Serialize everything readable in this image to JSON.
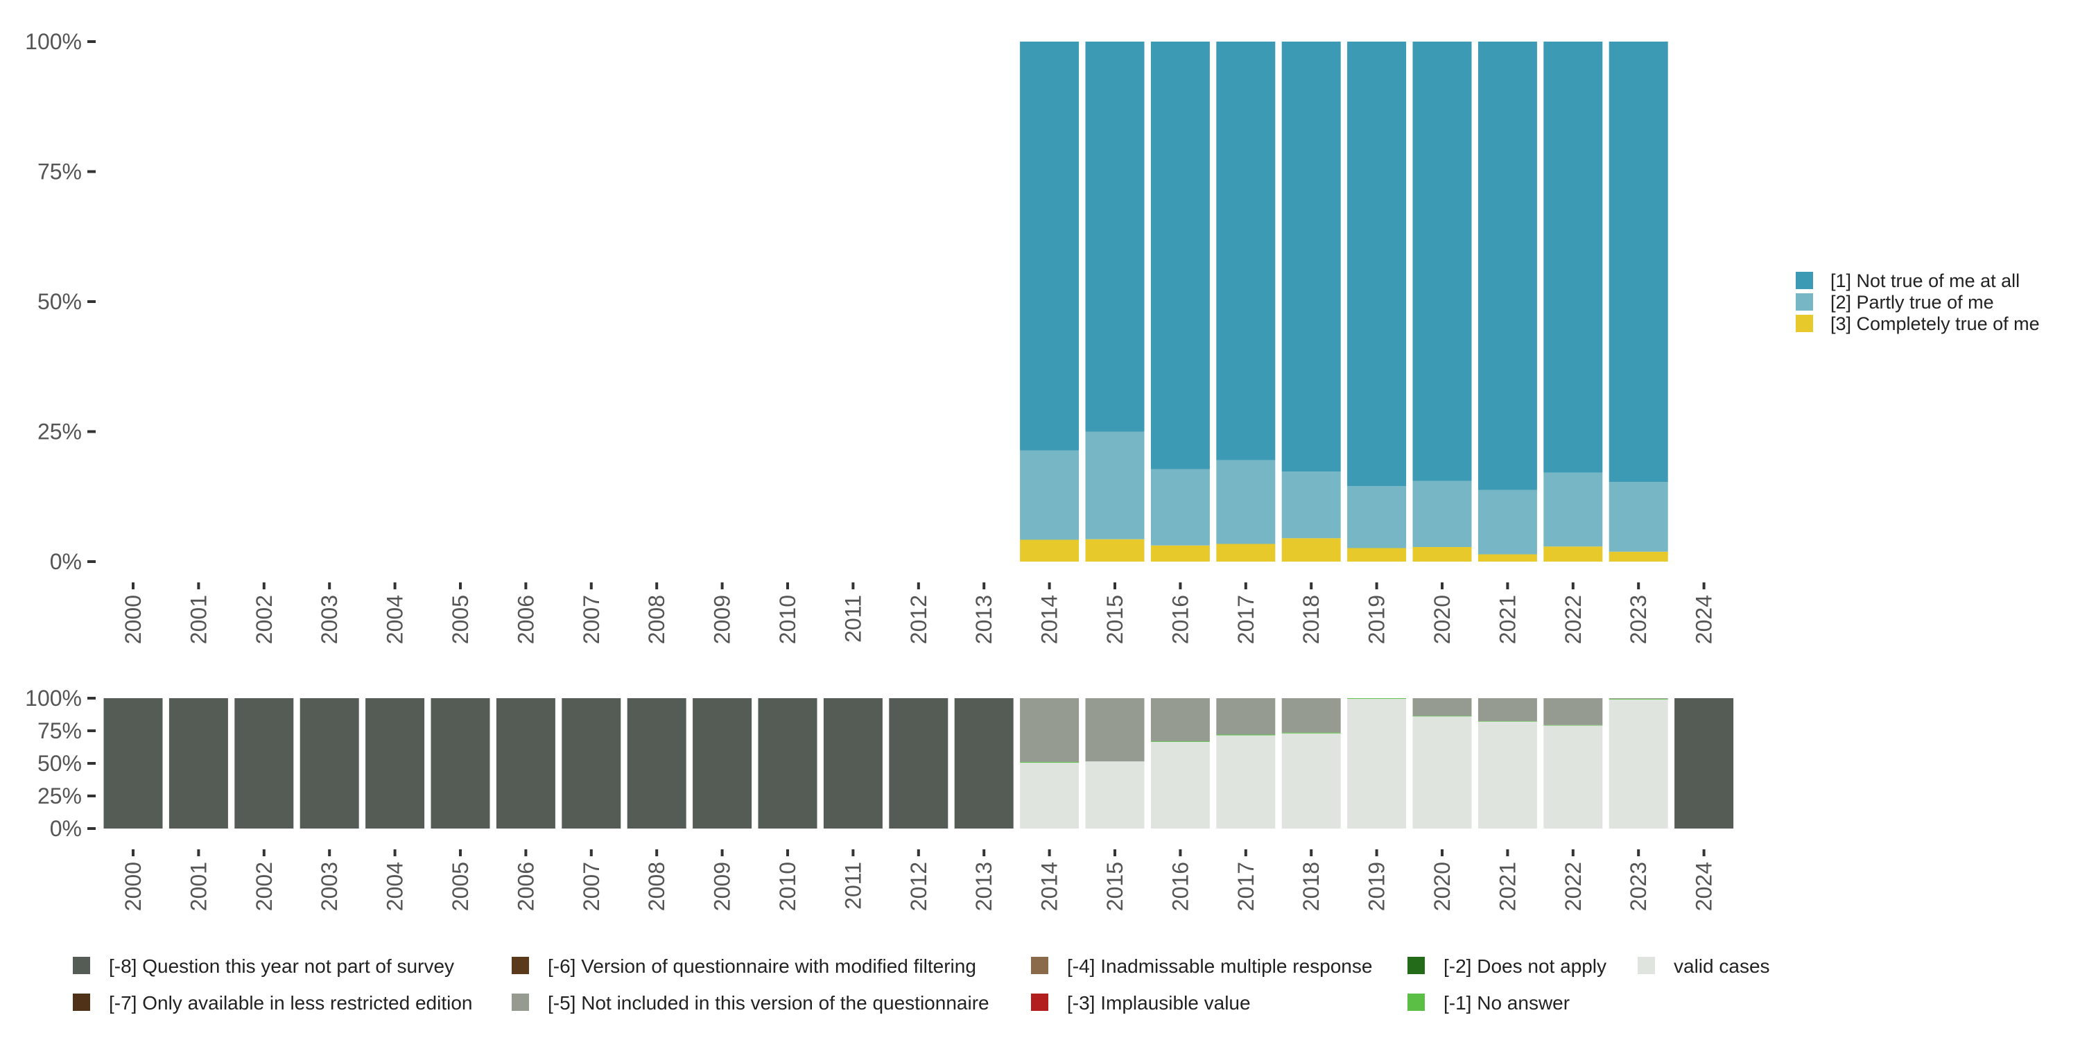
{
  "chart_data": [
    {
      "type": "bar",
      "stacked": true,
      "title": "",
      "xlabel": "",
      "ylabel": "",
      "ylim": [
        0,
        100
      ],
      "ytick_labels": [
        "0%",
        "25%",
        "50%",
        "75%",
        "100%"
      ],
      "categories": [
        "2000",
        "2001",
        "2002",
        "2003",
        "2004",
        "2005",
        "2006",
        "2007",
        "2008",
        "2009",
        "2010",
        "2011",
        "2012",
        "2013",
        "2014",
        "2015",
        "2016",
        "2017",
        "2018",
        "2019",
        "2020",
        "2021",
        "2022",
        "2023",
        "2024"
      ],
      "series": [
        {
          "name": "[3] Completely true of me",
          "color": "#e8c92c",
          "values": [
            null,
            null,
            null,
            null,
            null,
            null,
            null,
            null,
            null,
            null,
            null,
            null,
            null,
            null,
            4.2,
            4.3,
            3.1,
            3.4,
            4.5,
            2.6,
            2.8,
            1.4,
            2.9,
            1.9,
            null
          ]
        },
        {
          "name": "[2] Partly true of me",
          "color": "#77b6c4",
          "values": [
            null,
            null,
            null,
            null,
            null,
            null,
            null,
            null,
            null,
            null,
            null,
            null,
            null,
            null,
            17.2,
            20.7,
            14.7,
            16.1,
            12.8,
            11.9,
            12.7,
            12.4,
            14.2,
            13.4,
            null
          ]
        },
        {
          "name": "[1] Not true of me at all",
          "color": "#3c9ab4",
          "values": [
            null,
            null,
            null,
            null,
            null,
            null,
            null,
            null,
            null,
            null,
            null,
            null,
            null,
            null,
            78.6,
            75.0,
            82.2,
            80.5,
            82.7,
            85.5,
            84.5,
            86.2,
            82.9,
            84.7,
            null
          ]
        }
      ],
      "legend_position": "right"
    },
    {
      "type": "bar",
      "stacked": true,
      "title": "",
      "xlabel": "",
      "ylabel": "",
      "ylim": [
        0,
        100
      ],
      "ytick_labels": [
        "0%",
        "25%",
        "50%",
        "75%",
        "100%"
      ],
      "categories": [
        "2000",
        "2001",
        "2002",
        "2003",
        "2004",
        "2005",
        "2006",
        "2007",
        "2008",
        "2009",
        "2010",
        "2011",
        "2012",
        "2013",
        "2014",
        "2015",
        "2016",
        "2017",
        "2018",
        "2019",
        "2020",
        "2021",
        "2022",
        "2023",
        "2024"
      ],
      "series": [
        {
          "name": "valid cases",
          "color": "#e0e4df",
          "values": [
            0,
            0,
            0,
            0,
            0,
            0,
            0,
            0,
            0,
            0,
            0,
            0,
            0,
            0,
            50.5,
            51.5,
            66.5,
            71.5,
            73.0,
            99.5,
            86.0,
            82.0,
            79.0,
            99.0,
            0
          ]
        },
        {
          "name": "[-1] No answer",
          "color": "#5bbf45",
          "values": [
            0,
            0,
            0,
            0,
            0,
            0,
            0,
            0,
            0,
            0,
            0,
            0,
            0,
            0,
            0.6,
            0,
            0.5,
            0.6,
            0.6,
            0.5,
            0.4,
            0.4,
            0.4,
            0.5,
            0
          ]
        },
        {
          "name": "[-5] Not included in this version of the questionnaire",
          "color": "#969b91",
          "values": [
            0,
            0,
            0,
            0,
            0,
            0,
            0,
            0,
            0,
            0,
            0,
            0,
            0,
            0,
            48.9,
            48.5,
            33.0,
            27.9,
            26.4,
            0,
            13.6,
            17.6,
            20.6,
            0.5,
            0
          ]
        },
        {
          "name": "[-8] Question this year not part of survey",
          "color": "#555c55",
          "values": [
            100,
            100,
            100,
            100,
            100,
            100,
            100,
            100,
            100,
            100,
            100,
            100,
            100,
            100,
            0,
            0,
            0,
            0,
            0,
            0,
            0,
            0,
            0,
            0,
            100
          ]
        }
      ],
      "legend_position": "bottom"
    }
  ],
  "legend_top": [
    {
      "label": "[1] Not true of me at all",
      "color": "#3c9ab4"
    },
    {
      "label": "[2] Partly true of me",
      "color": "#77b6c4"
    },
    {
      "label": "[3] Completely true of me",
      "color": "#e8c92c"
    }
  ],
  "legend_bottom": [
    {
      "label": "[-8] Question this year not part of survey",
      "color": "#555c55"
    },
    {
      "label": "[-7] Only available in less restricted edition",
      "color": "#4f3218"
    },
    {
      "label": "[-6] Version of questionnaire with modified filtering",
      "color": "#5a3a1a"
    },
    {
      "label": "[-5] Not included in this version of the questionnaire",
      "color": "#969b91"
    },
    {
      "label": "[-4] Inadmissable multiple response",
      "color": "#8a6a4a"
    },
    {
      "label": "[-3] Implausible value",
      "color": "#b21e1e"
    },
    {
      "label": "[-2] Does not apply",
      "color": "#236b18"
    },
    {
      "label": "[-1] No answer",
      "color": "#5bbf45"
    },
    {
      "label": "valid cases",
      "color": "#e0e4df"
    }
  ]
}
